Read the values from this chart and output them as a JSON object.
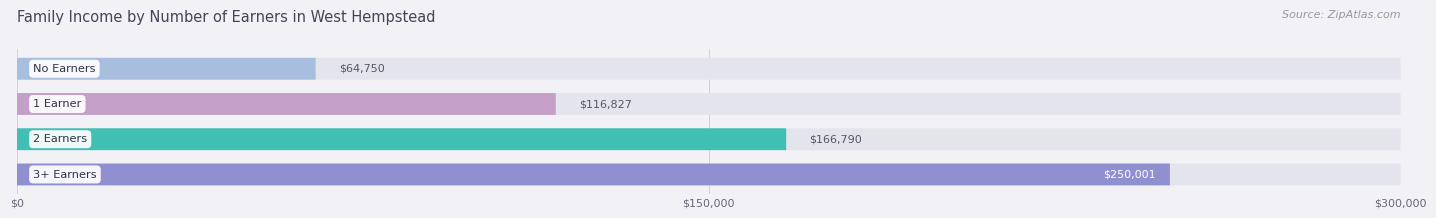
{
  "title": "Family Income by Number of Earners in West Hempstead",
  "source": "Source: ZipAtlas.com",
  "categories": [
    "No Earners",
    "1 Earner",
    "2 Earners",
    "3+ Earners"
  ],
  "values": [
    64750,
    116827,
    166790,
    250001
  ],
  "labels": [
    "$64,750",
    "$116,827",
    "$166,790",
    "$250,001"
  ],
  "bar_colors": [
    "#a8bede",
    "#c4a0c8",
    "#40bfb5",
    "#9090d0"
  ],
  "bar_bg_color": "#e4e4ec",
  "xlim": [
    0,
    300000
  ],
  "xtick_labels": [
    "$0",
    "$150,000",
    "$300,000"
  ],
  "title_color": "#444455",
  "title_fontsize": 10.5,
  "source_fontsize": 8,
  "background_color": "#f2f2f6",
  "bar_height": 0.62,
  "bar_gap": 1.0,
  "value_label_inside_threshold": 220000
}
